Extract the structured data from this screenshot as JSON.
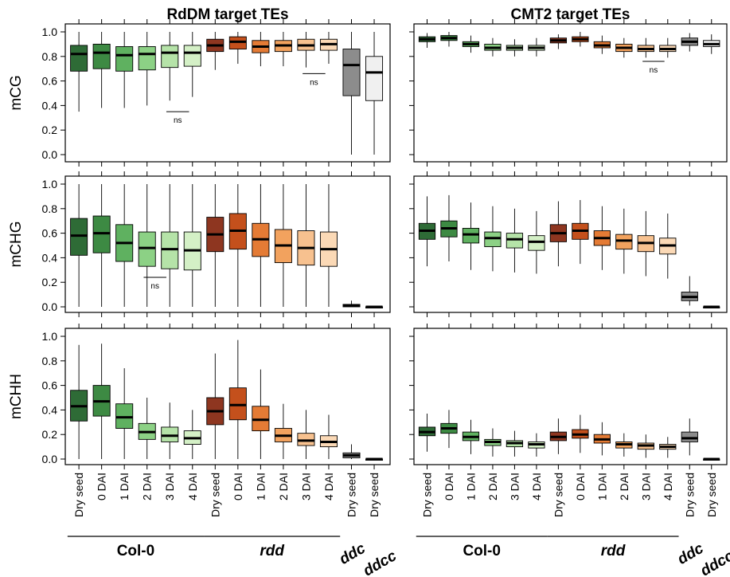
{
  "figure": {
    "column_titles": [
      "RdDM target TEs",
      "CMT2 target TEs"
    ],
    "row_labels": [
      "mCG",
      "mCHG",
      "mCHH"
    ],
    "y_ticks": [
      "0.0",
      "0.2",
      "0.4",
      "0.6",
      "0.8",
      "1.0"
    ],
    "categories": [
      "Dry seed",
      "0 DAI",
      "1 DAI",
      "2 DAI",
      "3 DAI",
      "4 DAI",
      "Dry seed",
      "0 DAI",
      "1 DAI",
      "2 DAI",
      "3 DAI",
      "4 DAI",
      "Dry seed",
      "Dry seed"
    ],
    "groups": [
      "Col-0",
      "rdd",
      "ddc",
      "ddcc"
    ],
    "ns_label": "ns",
    "colors": [
      "#2e6b36",
      "#3d8a43",
      "#5fb160",
      "#8cd185",
      "#b5e3a8",
      "#d4f0c6",
      "#8e3620",
      "#c4501c",
      "#e47b35",
      "#f2a25e",
      "#f7c18f",
      "#fbd9b6",
      "#8c8c8c",
      "#f0f0f0"
    ]
  },
  "chart_data": [
    {
      "type": "box",
      "title": "RdDM target TEs",
      "ylabel": "mCG",
      "ylim": [
        0,
        1
      ],
      "categories": [
        "Dry seed",
        "0 DAI",
        "1 DAI",
        "2 DAI",
        "3 DAI",
        "4 DAI",
        "Dry seed",
        "0 DAI",
        "1 DAI",
        "2 DAI",
        "3 DAI",
        "4 DAI",
        "Dry seed",
        "Dry seed"
      ],
      "boxes": [
        [
          0.35,
          0.68,
          0.82,
          0.89,
          1.0
        ],
        [
          0.38,
          0.7,
          0.83,
          0.9,
          1.0
        ],
        [
          0.38,
          0.68,
          0.81,
          0.88,
          1.0
        ],
        [
          0.4,
          0.69,
          0.82,
          0.88,
          1.0
        ],
        [
          0.44,
          0.71,
          0.83,
          0.89,
          1.0
        ],
        [
          0.47,
          0.72,
          0.83,
          0.89,
          1.0
        ],
        [
          0.69,
          0.84,
          0.89,
          0.94,
          1.0
        ],
        [
          0.74,
          0.86,
          0.92,
          0.96,
          1.0
        ],
        [
          0.72,
          0.83,
          0.88,
          0.93,
          1.0
        ],
        [
          0.72,
          0.84,
          0.89,
          0.93,
          1.0
        ],
        [
          0.71,
          0.85,
          0.89,
          0.94,
          1.0
        ],
        [
          0.74,
          0.85,
          0.9,
          0.94,
          1.0
        ],
        [
          0.0,
          0.48,
          0.73,
          0.86,
          1.0
        ],
        [
          0.0,
          0.44,
          0.67,
          0.8,
          1.0
        ]
      ],
      "ns_marks": [
        {
          "between": [
            4,
            5
          ],
          "y": 0.35
        },
        {
          "between": [
            10,
            11
          ],
          "y": 0.66
        }
      ]
    },
    {
      "type": "box",
      "title": "CMT2 target TEs",
      "ylabel": "",
      "ylim": [
        0,
        1
      ],
      "categories": [
        "Dry seed",
        "0 DAI",
        "1 DAI",
        "2 DAI",
        "3 DAI",
        "4 DAI",
        "Dry seed",
        "0 DAI",
        "1 DAI",
        "2 DAI",
        "3 DAI",
        "4 DAI",
        "Dry seed",
        "Dry seed"
      ],
      "boxes": [
        [
          0.87,
          0.92,
          0.94,
          0.96,
          0.99
        ],
        [
          0.88,
          0.93,
          0.95,
          0.97,
          1.0
        ],
        [
          0.83,
          0.88,
          0.9,
          0.92,
          0.97
        ],
        [
          0.8,
          0.85,
          0.87,
          0.9,
          0.95
        ],
        [
          0.8,
          0.85,
          0.87,
          0.89,
          0.94
        ],
        [
          0.8,
          0.85,
          0.87,
          0.89,
          0.95
        ],
        [
          0.86,
          0.91,
          0.93,
          0.95,
          0.98
        ],
        [
          0.88,
          0.92,
          0.94,
          0.96,
          1.0
        ],
        [
          0.82,
          0.87,
          0.89,
          0.92,
          0.97
        ],
        [
          0.79,
          0.84,
          0.87,
          0.9,
          0.95
        ],
        [
          0.79,
          0.84,
          0.86,
          0.89,
          0.95
        ],
        [
          0.79,
          0.84,
          0.86,
          0.89,
          0.95
        ],
        [
          0.84,
          0.89,
          0.92,
          0.95,
          0.99
        ],
        [
          0.82,
          0.88,
          0.9,
          0.93,
          0.98
        ]
      ],
      "ns_marks": [
        {
          "between": [
            10,
            11
          ],
          "y": 0.76
        }
      ]
    },
    {
      "type": "box",
      "title": "",
      "ylabel": "mCHG",
      "ylim": [
        0,
        1
      ],
      "categories": [
        "Dry seed",
        "0 DAI",
        "1 DAI",
        "2 DAI",
        "3 DAI",
        "4 DAI",
        "Dry seed",
        "0 DAI",
        "1 DAI",
        "2 DAI",
        "3 DAI",
        "4 DAI",
        "Dry seed",
        "Dry seed"
      ],
      "boxes": [
        [
          0.0,
          0.42,
          0.58,
          0.72,
          1.0
        ],
        [
          0.0,
          0.44,
          0.6,
          0.74,
          1.0
        ],
        [
          0.0,
          0.37,
          0.52,
          0.67,
          1.0
        ],
        [
          0.0,
          0.33,
          0.48,
          0.61,
          1.0
        ],
        [
          0.0,
          0.31,
          0.47,
          0.61,
          1.0
        ],
        [
          0.0,
          0.3,
          0.46,
          0.61,
          1.0
        ],
        [
          0.0,
          0.45,
          0.59,
          0.73,
          1.0
        ],
        [
          0.0,
          0.47,
          0.62,
          0.76,
          1.0
        ],
        [
          0.0,
          0.41,
          0.55,
          0.68,
          1.0
        ],
        [
          0.0,
          0.36,
          0.5,
          0.63,
          1.0
        ],
        [
          0.0,
          0.34,
          0.48,
          0.62,
          1.0
        ],
        [
          0.0,
          0.33,
          0.47,
          0.61,
          1.0
        ],
        [
          0.0,
          0.0,
          0.01,
          0.02,
          0.05
        ],
        [
          0.0,
          0.0,
          0.0,
          0.0,
          0.01
        ]
      ],
      "ns_marks": [
        {
          "between": [
            3,
            4
          ],
          "y": 0.24
        }
      ]
    },
    {
      "type": "box",
      "title": "",
      "ylabel": "",
      "ylim": [
        0,
        1
      ],
      "categories": [
        "Dry seed",
        "0 DAI",
        "1 DAI",
        "2 DAI",
        "3 DAI",
        "4 DAI",
        "Dry seed",
        "0 DAI",
        "1 DAI",
        "2 DAI",
        "3 DAI",
        "4 DAI",
        "Dry seed",
        "Dry seed"
      ],
      "boxes": [
        [
          0.33,
          0.55,
          0.62,
          0.68,
          0.9
        ],
        [
          0.37,
          0.57,
          0.64,
          0.7,
          0.91
        ],
        [
          0.3,
          0.52,
          0.59,
          0.64,
          0.85
        ],
        [
          0.29,
          0.49,
          0.56,
          0.61,
          0.82
        ],
        [
          0.28,
          0.48,
          0.55,
          0.6,
          0.8
        ],
        [
          0.27,
          0.46,
          0.53,
          0.58,
          0.78
        ],
        [
          0.33,
          0.53,
          0.6,
          0.67,
          0.86
        ],
        [
          0.35,
          0.55,
          0.62,
          0.68,
          0.87
        ],
        [
          0.3,
          0.5,
          0.56,
          0.62,
          0.82
        ],
        [
          0.27,
          0.47,
          0.54,
          0.59,
          0.8
        ],
        [
          0.25,
          0.45,
          0.52,
          0.58,
          0.78
        ],
        [
          0.23,
          0.43,
          0.5,
          0.56,
          0.76
        ],
        [
          0.01,
          0.05,
          0.08,
          0.12,
          0.25
        ],
        [
          0.0,
          0.0,
          0.0,
          0.0,
          0.01
        ]
      ],
      "ns_marks": []
    },
    {
      "type": "box",
      "title": "",
      "ylabel": "mCHH",
      "ylim": [
        0,
        1
      ],
      "categories": [
        "Dry seed",
        "0 DAI",
        "1 DAI",
        "2 DAI",
        "3 DAI",
        "4 DAI",
        "Dry seed",
        "0 DAI",
        "1 DAI",
        "2 DAI",
        "3 DAI",
        "4 DAI",
        "Dry seed",
        "Dry seed"
      ],
      "boxes": [
        [
          0.0,
          0.31,
          0.43,
          0.56,
          0.93
        ],
        [
          0.0,
          0.35,
          0.47,
          0.6,
          0.94
        ],
        [
          0.0,
          0.25,
          0.34,
          0.45,
          0.74
        ],
        [
          0.0,
          0.16,
          0.22,
          0.29,
          0.5
        ],
        [
          0.0,
          0.14,
          0.19,
          0.26,
          0.46
        ],
        [
          0.0,
          0.12,
          0.17,
          0.23,
          0.4
        ],
        [
          0.0,
          0.28,
          0.39,
          0.5,
          0.86
        ],
        [
          0.0,
          0.32,
          0.44,
          0.58,
          0.97
        ],
        [
          0.0,
          0.23,
          0.32,
          0.43,
          0.73
        ],
        [
          0.0,
          0.14,
          0.19,
          0.25,
          0.45
        ],
        [
          0.0,
          0.11,
          0.15,
          0.21,
          0.4
        ],
        [
          0.0,
          0.1,
          0.14,
          0.19,
          0.36
        ],
        [
          0.0,
          0.01,
          0.03,
          0.05,
          0.12
        ],
        [
          0.0,
          0.0,
          0.0,
          0.0,
          0.01
        ]
      ],
      "ns_marks": []
    },
    {
      "type": "box",
      "title": "",
      "ylabel": "",
      "ylim": [
        0,
        1
      ],
      "categories": [
        "Dry seed",
        "0 DAI",
        "1 DAI",
        "2 DAI",
        "3 DAI",
        "4 DAI",
        "Dry seed",
        "0 DAI",
        "1 DAI",
        "2 DAI",
        "3 DAI",
        "4 DAI",
        "Dry seed",
        "Dry seed"
      ],
      "boxes": [
        [
          0.06,
          0.19,
          0.22,
          0.26,
          0.37
        ],
        [
          0.09,
          0.21,
          0.25,
          0.29,
          0.4
        ],
        [
          0.04,
          0.15,
          0.18,
          0.22,
          0.32
        ],
        [
          0.02,
          0.11,
          0.14,
          0.16,
          0.25
        ],
        [
          0.02,
          0.1,
          0.13,
          0.15,
          0.23
        ],
        [
          0.02,
          0.09,
          0.12,
          0.14,
          0.21
        ],
        [
          0.04,
          0.15,
          0.18,
          0.22,
          0.33
        ],
        [
          0.05,
          0.17,
          0.2,
          0.24,
          0.36
        ],
        [
          0.03,
          0.13,
          0.16,
          0.2,
          0.3
        ],
        [
          0.02,
          0.09,
          0.12,
          0.14,
          0.21
        ],
        [
          0.01,
          0.08,
          0.11,
          0.13,
          0.2
        ],
        [
          0.01,
          0.08,
          0.1,
          0.12,
          0.18
        ],
        [
          0.03,
          0.14,
          0.17,
          0.22,
          0.33
        ],
        [
          0.0,
          0.0,
          0.0,
          0.0,
          0.01
        ]
      ],
      "ns_marks": []
    }
  ]
}
